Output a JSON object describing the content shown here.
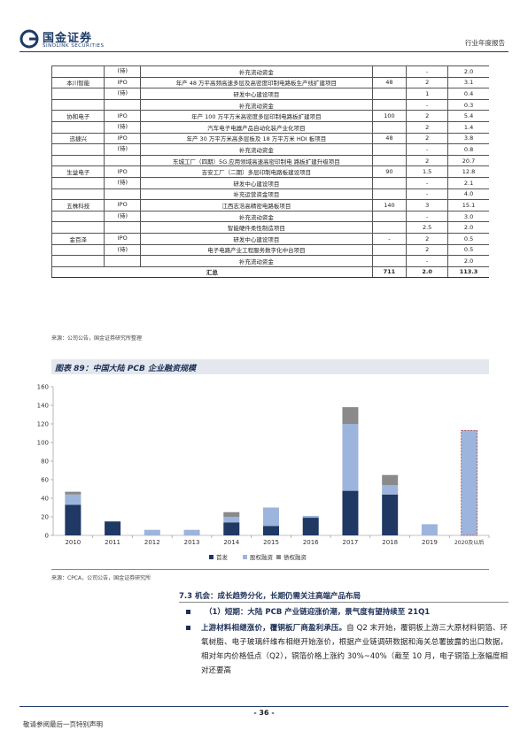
{
  "header": {
    "logo_cn": "国金证券",
    "logo_en": "SINOLINK SECURITIES",
    "report_type": "行业年度报告"
  },
  "table": {
    "rows": [
      {
        "company": "",
        "type": "(待)",
        "project": "补充流动资金",
        "total": "",
        "y1": "-",
        "y2": "2.0"
      },
      {
        "company": "本川智能",
        "type": "IPO",
        "project": "年产 48 万平高频高速多层及高密度印制电路板生产线扩建项目",
        "total": "48",
        "y1": "2",
        "y2": "3.1"
      },
      {
        "company": "",
        "type": "(待)",
        "project": "研发中心建设项目",
        "total": "",
        "y1": "1",
        "y2": "0.4"
      },
      {
        "company": "",
        "type": "",
        "project": "补充流动资金",
        "total": "",
        "y1": "-",
        "y2": "0.3"
      },
      {
        "company": "协和电子",
        "type": "IPO",
        "project": "年产 100 万平方米高密度多层印制电路板扩建项目",
        "total": "100",
        "y1": "2",
        "y2": "5.4"
      },
      {
        "company": "",
        "type": "(待)",
        "project": "汽车电子电器产品自动化装产业化项目",
        "total": "",
        "y1": "2",
        "y2": "1.4"
      },
      {
        "company": "迅捷兴",
        "type": "IPO",
        "project": "年产 30 万平方米高多层板及 18 万平方米 HDI 板项目",
        "total": "48",
        "y1": "2",
        "y2": "3.8"
      },
      {
        "company": "",
        "type": "(待)",
        "project": "补充流动资金",
        "total": "",
        "y1": "-",
        "y2": "0.8"
      },
      {
        "company": "",
        "type": "",
        "project": "东城工厂（四期）5G 应用领域高速高密印制电 路板扩建升级项目",
        "total": "",
        "y1": "2",
        "y2": "20.7"
      },
      {
        "company": "生益电子",
        "type": "IPO",
        "project": "吉安工厂（二期）多层印制电路板建设项目",
        "total": "90",
        "y1": "1.5",
        "y2": "12.8"
      },
      {
        "company": "",
        "type": "(待)",
        "project": "研发中心建设项目",
        "total": "",
        "y1": "-",
        "y2": "2.1"
      },
      {
        "company": "",
        "type": "",
        "project": "补充运营资金项目",
        "total": "",
        "y1": "-",
        "y2": "4.0"
      },
      {
        "company": "五株科技",
        "type": "IPO",
        "project": "江西志浩高精密电路板项目",
        "total": "140",
        "y1": "3",
        "y2": "15.1"
      },
      {
        "company": "",
        "type": "(待)",
        "project": "补充流动资金",
        "total": "",
        "y1": "-",
        "y2": "3.0"
      },
      {
        "company": "",
        "type": "",
        "project": "智能硬件柔性制造项目",
        "total": "",
        "y1": "2.5",
        "y2": "2.0"
      },
      {
        "company": "金百泽",
        "type": "IPO",
        "project": "研发中心建设项目",
        "total": "-",
        "y1": "2",
        "y2": "0.5"
      },
      {
        "company": "",
        "type": "(待)",
        "project": "电子电路产业工程服务数字化中台项目",
        "total": "",
        "y1": "2",
        "y2": "0.5"
      },
      {
        "company": "",
        "type": "",
        "project": "补充流动资金",
        "total": "",
        "y1": "-",
        "y2": "2.0"
      }
    ],
    "total_row": {
      "label": "汇总",
      "total": "711",
      "y1": "2.0",
      "y2": "113.3"
    },
    "source": "来源：公司公告，国金证券研究所整理"
  },
  "figure": {
    "title": "图表 89：中国大陆 PCB 企业融资规模",
    "source": "来源：CPCA，公司公告，国金证券研究所"
  },
  "chart_data": {
    "type": "bar",
    "stacked": true,
    "categories": [
      "2010",
      "2011",
      "2012",
      "2013",
      "2014",
      "2015",
      "2016",
      "2017",
      "2018",
      "2019",
      "2020及以后"
    ],
    "series": [
      {
        "name": "首发",
        "color": "#1f3864",
        "values": [
          33,
          15,
          0,
          0,
          14,
          10,
          19,
          48,
          44,
          0,
          0
        ]
      },
      {
        "name": "股权融资",
        "color": "#9db4dc",
        "values": [
          11,
          0,
          6,
          6,
          6,
          20,
          2,
          72,
          10,
          12,
          113
        ]
      },
      {
        "name": "债权融资",
        "color": "#8a8a8a",
        "values": [
          3,
          0,
          0,
          0,
          5,
          0,
          0,
          18,
          11,
          0,
          0
        ]
      }
    ],
    "ylim": [
      0,
      160
    ],
    "yticks": [
      0,
      20,
      40,
      60,
      80,
      100,
      120,
      140,
      160
    ],
    "legend_position": "bottom",
    "highlight_last": true
  },
  "section": {
    "title": "7.3 机会：成长趋势分化，长期仍需关注高端产品布局",
    "bullet1": "（1）短期：大陆 PCB 产业链迎涨价潮，景气度有望持续至 21Q1",
    "para_lead": "上游材料相继涨价，覆铜板厂商盈利承压。",
    "para_rest": "自 Q2 末开始，覆铜板上游三大原材料铜箔、环氧树脂、电子玻璃纤维布相继开始涨价，根据产业链调研数据和海关总署披露的出口数据，相对年内价格低点（Q2），铜箔价格上涨约 30%~40%（截至 10 月，电子铜箔上涨幅度相对还要高"
  },
  "footer": {
    "page": "- 36 -",
    "note": "敬请参阅最后一页特别声明"
  }
}
